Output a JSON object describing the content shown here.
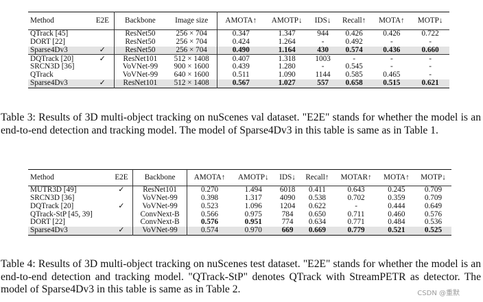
{
  "table3": {
    "headers": [
      "Method",
      "E2E",
      "Backbone",
      "Image size",
      "AMOTA↑",
      "AMOTP↓",
      "IDS↓",
      "Recall↑",
      "MOTA↑",
      "MOTP↓"
    ],
    "groups": [
      [
        {
          "cells": [
            "QTrack [45]",
            "",
            "ResNet50",
            "256 × 704",
            "0.347",
            "1.347",
            "944",
            "0.426",
            "0.426",
            "0.722"
          ],
          "highlight": false,
          "bold": []
        },
        {
          "cells": [
            "DORT [22]",
            "",
            "ResNet50",
            "256 × 704",
            "0.424",
            "1.264",
            "-",
            "0.492",
            "-",
            "-"
          ],
          "highlight": false,
          "bold": []
        },
        {
          "cells": [
            "Sparse4Dv3",
            "✓",
            "ResNet50",
            "256 × 704",
            "0.490",
            "1.164",
            "430",
            "0.574",
            "0.436",
            "0.660"
          ],
          "highlight": true,
          "bold": [
            4,
            5,
            6,
            7,
            8,
            9
          ]
        }
      ],
      [
        {
          "cells": [
            "DQTrack [20]",
            "✓",
            "ResNet101",
            "512 × 1408",
            "0.407",
            "1.318",
            "1003",
            "-",
            "-",
            "-"
          ],
          "highlight": false,
          "bold": []
        },
        {
          "cells": [
            "SRCN3D [36]",
            "",
            "VoVNet-99",
            "900 × 1600",
            "0.439",
            "1.280",
            "-",
            "0.545",
            "-",
            "-"
          ],
          "highlight": false,
          "bold": []
        },
        {
          "cells": [
            "QTrack",
            "",
            "VoVNet-99",
            "640 × 1600",
            "0.511",
            "1.090",
            "1144",
            "0.585",
            "0.465",
            "-"
          ],
          "highlight": false,
          "bold": []
        },
        {
          "cells": [
            "Sparse4Dv3",
            "✓",
            "ResNet101",
            "512 × 1408",
            "0.567",
            "1.027",
            "557",
            "0.658",
            "0.515",
            "0.621"
          ],
          "highlight": true,
          "bold": [
            4,
            5,
            6,
            7,
            8,
            9
          ]
        }
      ]
    ]
  },
  "caption3": "Table 3: Results of 3D multi-object tracking on nuScenes val dataset. \"E2E\" stands for whether the model is an end-to-end detection and tracking model. The model of Sparse4Dv3 in this table is same as in Table 1.",
  "table4": {
    "headers": [
      "Method",
      "E2E",
      "Backbone",
      "AMOTA↑",
      "AMOTP↓",
      "IDS↓",
      "Recall↑",
      "MOTAR↑",
      "MOTA↑",
      "MOTP↓"
    ],
    "groups": [
      [
        {
          "cells": [
            "MUTR3D [49]",
            "✓",
            "ResNet101",
            "0.270",
            "1.494",
            "6018",
            "0.411",
            "0.643",
            "0.245",
            "0.709"
          ],
          "highlight": false,
          "bold": []
        },
        {
          "cells": [
            "SRCN3D [36]",
            "",
            "VoVNet-99",
            "0.398",
            "1.317",
            "4090",
            "0.538",
            "0.702",
            "0.359",
            "0.709"
          ],
          "highlight": false,
          "bold": []
        },
        {
          "cells": [
            "DQTrack [20]",
            "✓",
            "VoVNet-99",
            "0.523",
            "1.096",
            "1204",
            "0.622",
            "-",
            "0.444",
            "0.649"
          ],
          "highlight": false,
          "bold": []
        },
        {
          "cells": [
            "QTrack-StP [45, 39]",
            "",
            "ConvNext-B",
            "0.566",
            "0.975",
            "784",
            "0.650",
            "0.711",
            "0.460",
            "0.576"
          ],
          "highlight": false,
          "bold": []
        },
        {
          "cells": [
            "DORT [22]",
            "",
            "ConvNext-B",
            "0.576",
            "0.951",
            "774",
            "0.634",
            "0.771",
            "0.484",
            "0.536"
          ],
          "highlight": false,
          "bold": [
            3,
            4
          ]
        },
        {
          "cells": [
            "Sparse4Dv3",
            "✓",
            "VoVNet-99",
            "0.574",
            "0.970",
            "669",
            "0.669",
            "0.779",
            "0.521",
            "0.525"
          ],
          "highlight": true,
          "bold": [
            5,
            6,
            7,
            8,
            9
          ]
        }
      ]
    ]
  },
  "caption4": "Table 4: Results of 3D multi-object tracking on nuScenes test dataset. \"E2E\" stands for whether the model is an end-to-end detection and tracking model. \"QTrack-StP\" denotes QTrack with StreamPETR as detector. The model of Sparse4Dv3 in this table is same as in Table 2.",
  "watermark": "CSDN @重默"
}
